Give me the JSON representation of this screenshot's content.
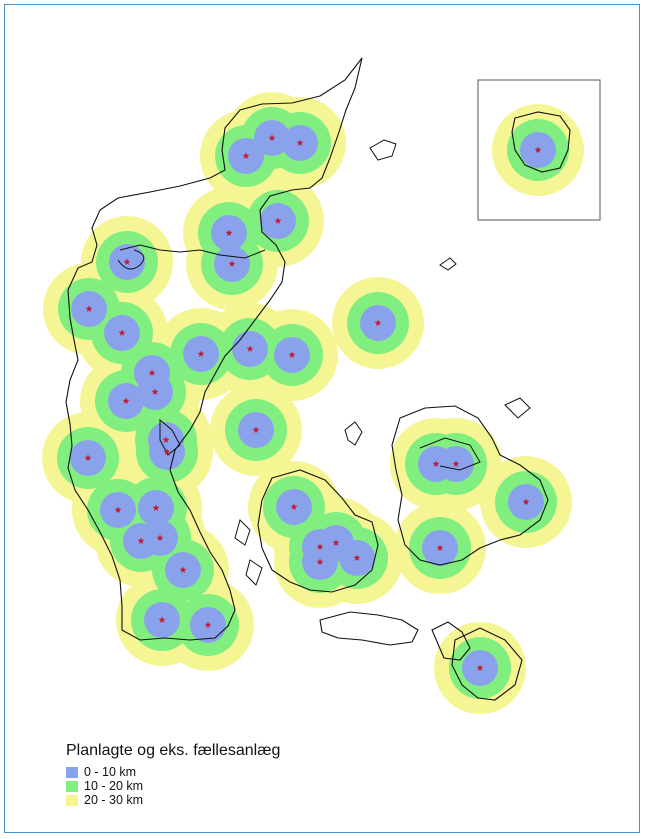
{
  "legend": {
    "title": "Planlagte og eks. fællesanlæg",
    "items": [
      {
        "label": "0 - 10 km",
        "color": "#8aa2ec"
      },
      {
        "label": "10 - 20 km",
        "color": "#80ef80"
      },
      {
        "label": "20 - 30 km",
        "color": "#f6f594"
      }
    ]
  },
  "colors": {
    "star": "#c0192b",
    "coastline": "#111111",
    "frame_border": "#4a90c8"
  }
}
